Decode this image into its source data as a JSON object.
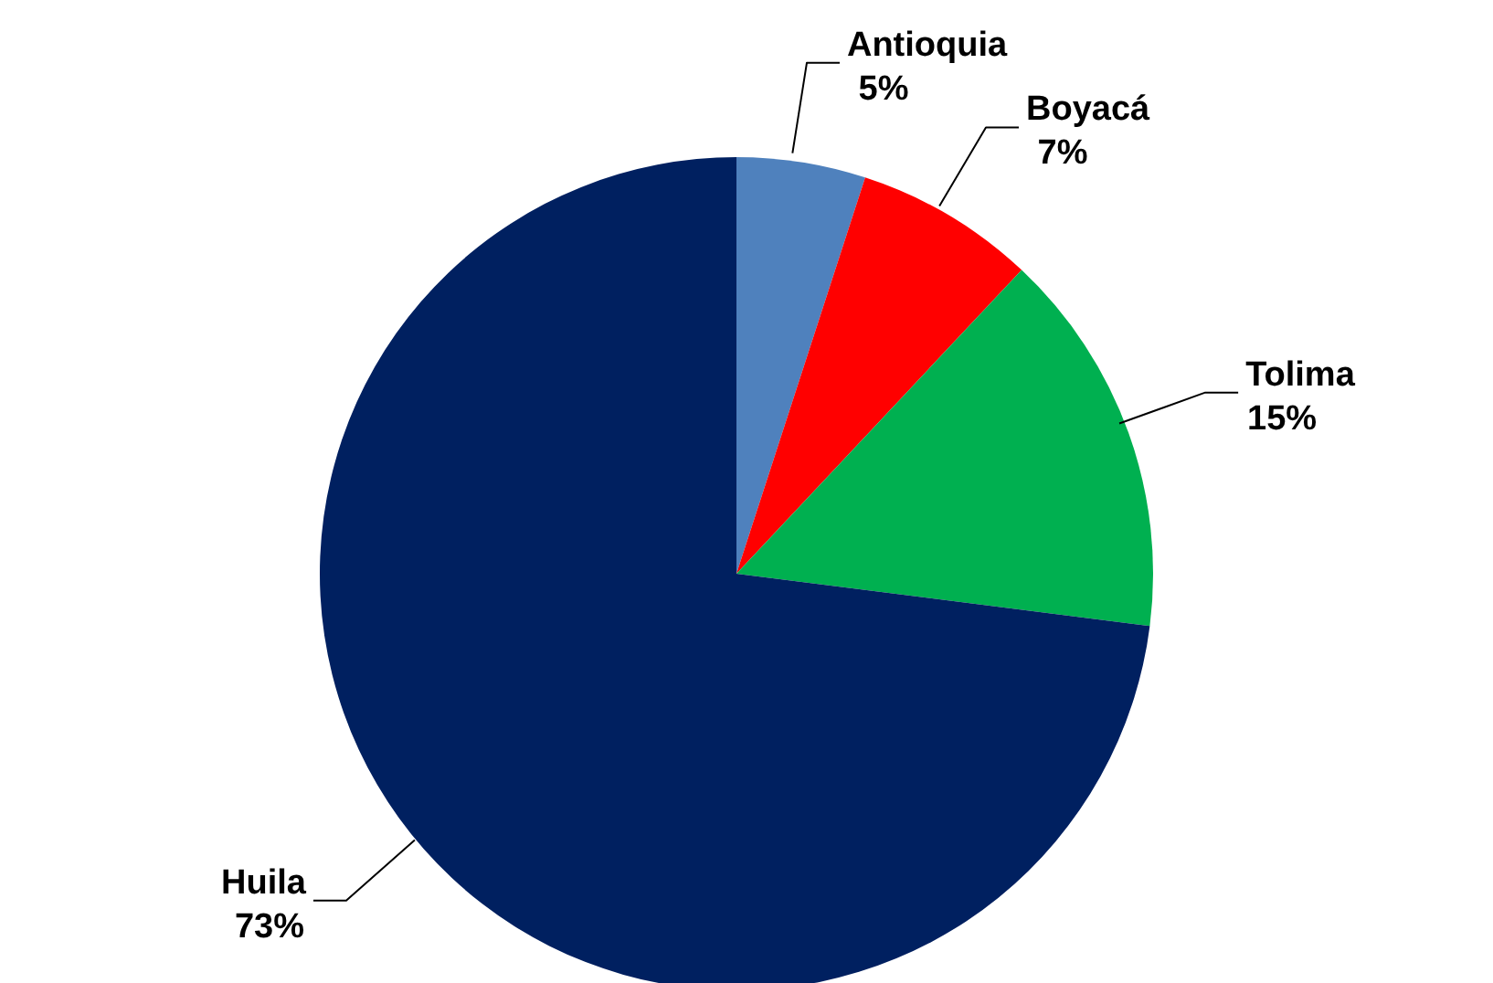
{
  "chart_data": {
    "type": "pie",
    "categories": [
      "Antioquia",
      "Boyacá",
      "Tolima",
      "Huila"
    ],
    "values": [
      5,
      7,
      15,
      73
    ],
    "value_labels": [
      "5%",
      "7%",
      "15%",
      "73%"
    ],
    "colors": [
      "#4f81bd",
      "#ff0000",
      "#00b050",
      "#002060"
    ]
  }
}
